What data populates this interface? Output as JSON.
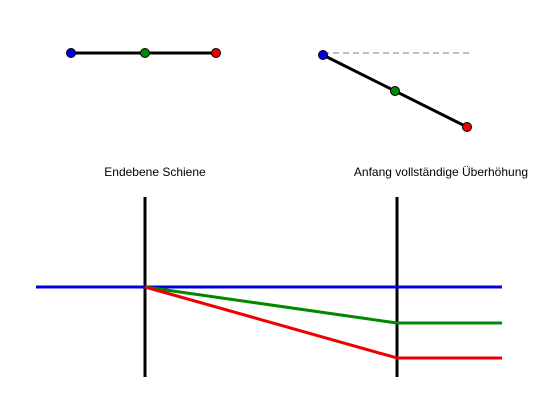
{
  "labels": {
    "left": "Endebene Schiene",
    "right": "Anfang vollständige Überhöhung"
  },
  "colors": {
    "inner_rail": "#0000dd",
    "axis": "#008800",
    "outer_rail": "#ee0000",
    "reference": "#999999",
    "section": "#000000"
  }
}
